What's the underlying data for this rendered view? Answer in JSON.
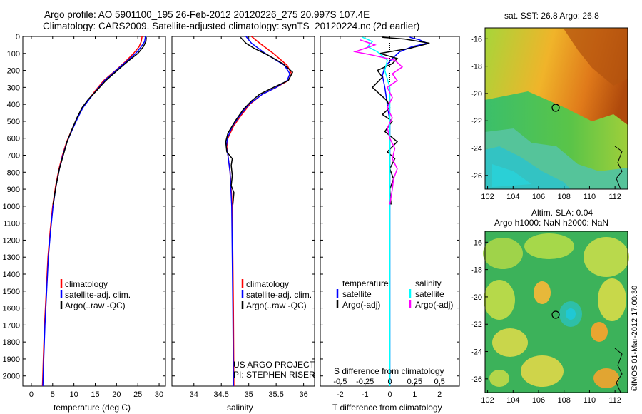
{
  "title": {
    "line1": "Argo profile: AO 5901100_195 26-Feb-2012 20120226_275 20.997S 107.4E",
    "line2": "Climatology: CARS2009. Satellite-adjusted climatology: synTS_20120224.nc (2d earlier)"
  },
  "colors": {
    "climatology": "#ff0000",
    "satellite": "#0000ff",
    "argo": "#000000",
    "argo_adj_salinity": "#ff00ff",
    "satellite_salinity": "#00ffff"
  },
  "depth_ticks": [
    0,
    100,
    200,
    300,
    400,
    500,
    600,
    700,
    800,
    900,
    1000,
    1100,
    1200,
    1300,
    1400,
    1500,
    1600,
    1700,
    1800,
    1900,
    2000
  ],
  "chart_data": [
    {
      "type": "line",
      "id": "temperature",
      "xlabel": "temperature (deg C)",
      "ylabel": "",
      "xlim": [
        -2,
        31.5
      ],
      "ylim": [
        2060,
        0
      ],
      "xticks": [
        0,
        5,
        10,
        15,
        20,
        25,
        30
      ],
      "legend": [
        "climatology",
        "satellite-adj. clim.",
        "Argo(..raw -QC)"
      ],
      "series": [
        {
          "name": "climatology",
          "color": "#ff0000",
          "points": [
            [
              26.0,
              0
            ],
            [
              25.8,
              30
            ],
            [
              25.3,
              60
            ],
            [
              24.0,
              100
            ],
            [
              22.0,
              150
            ],
            [
              19.8,
              200
            ],
            [
              17.0,
              260
            ],
            [
              15.0,
              320
            ],
            [
              13.5,
              370
            ],
            [
              12.0,
              420
            ],
            [
              10.8,
              480
            ],
            [
              9.5,
              550
            ],
            [
              8.3,
              620
            ],
            [
              7.3,
              700
            ],
            [
              6.5,
              780
            ],
            [
              5.7,
              880
            ],
            [
              5.0,
              1000
            ],
            [
              4.4,
              1150
            ],
            [
              3.9,
              1300
            ],
            [
              3.5,
              1500
            ],
            [
              3.1,
              1700
            ],
            [
              2.8,
              1900
            ],
            [
              2.6,
              2060
            ]
          ]
        },
        {
          "name": "satellite-adj. clim.",
          "color": "#0000ff",
          "points": [
            [
              26.8,
              0
            ],
            [
              26.6,
              30
            ],
            [
              25.8,
              60
            ],
            [
              24.5,
              100
            ],
            [
              22.2,
              150
            ],
            [
              19.9,
              200
            ],
            [
              17.2,
              260
            ],
            [
              15.2,
              320
            ],
            [
              13.6,
              370
            ],
            [
              12.1,
              420
            ],
            [
              10.9,
              480
            ],
            [
              9.6,
              550
            ],
            [
              8.4,
              620
            ],
            [
              7.4,
              700
            ],
            [
              6.6,
              780
            ],
            [
              5.8,
              880
            ],
            [
              5.1,
              1000
            ],
            [
              4.5,
              1150
            ],
            [
              4.0,
              1300
            ],
            [
              3.6,
              1500
            ],
            [
              3.2,
              1700
            ],
            [
              2.9,
              1900
            ],
            [
              2.7,
              2060
            ]
          ]
        },
        {
          "name": "Argo(..raw -QC)",
          "color": "#000000",
          "points": [
            [
              27.0,
              5
            ],
            [
              26.9,
              30
            ],
            [
              26.3,
              60
            ],
            [
              25.0,
              100
            ],
            [
              22.5,
              150
            ],
            [
              20.2,
              200
            ],
            [
              17.5,
              260
            ],
            [
              15.3,
              320
            ],
            [
              13.4,
              370
            ],
            [
              11.9,
              420
            ],
            [
              10.7,
              480
            ],
            [
              9.5,
              550
            ],
            [
              8.4,
              620
            ],
            [
              7.5,
              700
            ],
            [
              6.6,
              780
            ],
            [
              5.8,
              880
            ],
            [
              5.1,
              990
            ]
          ]
        }
      ]
    },
    {
      "type": "line",
      "id": "salinity",
      "xlabel": "salinity",
      "ylabel": "",
      "xlim": [
        33.6,
        36.2
      ],
      "ylim": [
        2060,
        0
      ],
      "xticks": [
        34,
        34.5,
        35,
        35.5,
        36
      ],
      "legend": [
        "climatology",
        "satellite-adj. clim.",
        "Argo(..raw -QC)"
      ],
      "annotation": [
        "US ARGO PROJECT",
        "PI: STEPHEN RISER"
      ],
      "series": [
        {
          "name": "climatology",
          "color": "#ff0000",
          "points": [
            [
              35.05,
              0
            ],
            [
              35.2,
              40
            ],
            [
              35.45,
              100
            ],
            [
              35.7,
              170
            ],
            [
              35.78,
              220
            ],
            [
              35.72,
              260
            ],
            [
              35.5,
              300
            ],
            [
              35.25,
              340
            ],
            [
              35.02,
              400
            ],
            [
              34.85,
              470
            ],
            [
              34.72,
              530
            ],
            [
              34.62,
              600
            ],
            [
              34.6,
              650
            ],
            [
              34.62,
              700
            ],
            [
              34.66,
              800
            ],
            [
              34.7,
              1000
            ],
            [
              34.71,
              1300
            ],
            [
              34.72,
              1600
            ],
            [
              34.73,
              2060
            ]
          ]
        },
        {
          "name": "satellite-adj. clim.",
          "color": "#0000ff",
          "points": [
            [
              34.95,
              0
            ],
            [
              35.05,
              40
            ],
            [
              35.3,
              100
            ],
            [
              35.65,
              170
            ],
            [
              35.75,
              220
            ],
            [
              35.7,
              260
            ],
            [
              35.5,
              300
            ],
            [
              35.25,
              340
            ],
            [
              35.0,
              400
            ],
            [
              34.83,
              470
            ],
            [
              34.7,
              530
            ],
            [
              34.61,
              600
            ],
            [
              34.59,
              650
            ],
            [
              34.62,
              700
            ],
            [
              34.66,
              800
            ],
            [
              34.69,
              1000
            ],
            [
              34.7,
              1300
            ],
            [
              34.71,
              1600
            ],
            [
              34.72,
              2060
            ]
          ]
        },
        {
          "name": "Argo(..raw -QC)",
          "color": "#000000",
          "points": [
            [
              34.85,
              5
            ],
            [
              34.95,
              40
            ],
            [
              35.1,
              70
            ],
            [
              35.35,
              110
            ],
            [
              35.62,
              160
            ],
            [
              35.8,
              210
            ],
            [
              35.72,
              260
            ],
            [
              35.45,
              300
            ],
            [
              35.2,
              340
            ],
            [
              35.05,
              380
            ],
            [
              34.9,
              430
            ],
            [
              34.75,
              500
            ],
            [
              34.62,
              570
            ],
            [
              34.58,
              620
            ],
            [
              34.6,
              680
            ],
            [
              34.7,
              720
            ],
            [
              34.68,
              760
            ],
            [
              34.7,
              820
            ],
            [
              34.68,
              880
            ],
            [
              34.73,
              920
            ],
            [
              34.71,
              990
            ]
          ]
        }
      ]
    },
    {
      "type": "line",
      "id": "difference",
      "xlabel": "T difference from climatology",
      "xlabel2": "S difference from climatology",
      "xlim": [
        -2.8,
        2.8
      ],
      "ylim": [
        2060,
        0
      ],
      "xticks_T": [
        -2,
        -1,
        0,
        1,
        2
      ],
      "xticks_S": [
        "-0.5",
        "-0.25",
        "0",
        "0.25",
        "0.5"
      ],
      "xticks_S_pos": [
        -2,
        -1,
        0,
        1,
        2
      ],
      "legend_header": [
        "temperature",
        "salinity"
      ],
      "legend": [
        "satellite",
        "Argo(-adj)",
        "satellite",
        "Argo(-adj)"
      ],
      "series": [
        {
          "name": "T satellite",
          "color": "#0000ff",
          "points": [
            [
              0.8,
              5
            ],
            [
              1.2,
              20
            ],
            [
              1.5,
              40
            ],
            [
              0.9,
              60
            ],
            [
              0.4,
              90
            ],
            [
              0.1,
              130
            ],
            [
              -0.2,
              180
            ],
            [
              -0.3,
              230
            ],
            [
              -0.2,
              300
            ],
            [
              -0.1,
              400
            ],
            [
              0.0,
              500
            ],
            [
              0.0,
              700
            ],
            [
              0.0,
              900
            ],
            [
              0.0,
              1300
            ],
            [
              0.0,
              1700
            ],
            [
              0.0,
              2060
            ]
          ]
        },
        {
          "name": "T Argo(-adj)",
          "color": "#000000",
          "points": [
            [
              -0.3,
              5
            ],
            [
              0.6,
              15
            ],
            [
              1.6,
              40
            ],
            [
              0.8,
              70
            ],
            [
              -0.4,
              100
            ],
            [
              0.3,
              130
            ],
            [
              0.1,
              160
            ],
            [
              -0.5,
              200
            ],
            [
              -0.3,
              240
            ],
            [
              -0.7,
              300
            ],
            [
              -0.4,
              340
            ],
            [
              -0.1,
              380
            ],
            [
              0.0,
              420
            ],
            [
              -0.3,
              460
            ],
            [
              0.1,
              500
            ],
            [
              -0.2,
              560
            ],
            [
              0.3,
              620
            ],
            [
              -0.1,
              680
            ],
            [
              0.2,
              720
            ],
            [
              0.0,
              780
            ],
            [
              0.15,
              840
            ],
            [
              0.0,
              900
            ],
            [
              0.05,
              990
            ]
          ]
        },
        {
          "name": "S satellite",
          "color": "#00ffff",
          "points": [
            [
              -1.1,
              5
            ],
            [
              -0.7,
              30
            ],
            [
              -0.9,
              60
            ],
            [
              -0.5,
              90
            ],
            [
              -0.1,
              140
            ],
            [
              -0.2,
              200
            ],
            [
              0.0,
              300
            ],
            [
              0.0,
              500
            ],
            [
              0.0,
              800
            ],
            [
              0.0,
              1200
            ],
            [
              0.0,
              2060
            ]
          ]
        },
        {
          "name": "S Argo(-adj)",
          "color": "#ff00ff",
          "points": [
            [
              -1.2,
              20
            ],
            [
              -0.6,
              50
            ],
            [
              -1.4,
              90
            ],
            [
              -0.7,
              110
            ],
            [
              0.2,
              140
            ],
            [
              0.5,
              180
            ],
            [
              0.1,
              220
            ],
            [
              0.3,
              260
            ],
            [
              -0.1,
              300
            ],
            [
              0.1,
              360
            ],
            [
              -0.1,
              420
            ],
            [
              0.1,
              480
            ],
            [
              -0.1,
              540
            ],
            [
              0.0,
              600
            ],
            [
              0.2,
              660
            ],
            [
              0.1,
              720
            ],
            [
              0.3,
              780
            ],
            [
              0.15,
              840
            ],
            [
              0.1,
              900
            ],
            [
              0.0,
              990
            ]
          ]
        }
      ]
    },
    {
      "type": "heatmap",
      "id": "sst_map",
      "title": "sat. SST: 26.8 Argo: 26.8",
      "xlim": [
        101.8,
        113.0
      ],
      "ylim": [
        -27.0,
        -15.2
      ],
      "xticks": [
        102,
        104,
        106,
        108,
        110,
        112
      ],
      "yticks": [
        -16,
        -18,
        -20,
        -22,
        -24,
        -26
      ],
      "marker": [
        107.4,
        -21.0
      ]
    },
    {
      "type": "heatmap",
      "id": "sla_map",
      "title": "Altim. SLA: 0.04",
      "subtitle": "Argo h1000: NaN h2000: NaN",
      "xlim": [
        101.8,
        113.0
      ],
      "ylim": [
        -27.0,
        -15.2
      ],
      "xticks": [
        102,
        104,
        106,
        108,
        110,
        112
      ],
      "yticks": [
        -16,
        -18,
        -20,
        -22,
        -24,
        -26
      ],
      "marker": [
        107.4,
        -21.0
      ]
    }
  ],
  "panel_text": {
    "legend_climatology": "climatology",
    "legend_satellite": "satellite-adj. clim.",
    "legend_argo": "Argo(..raw -QC)",
    "legend_temperature": "temperature",
    "legend_salinity": "salinity",
    "legend_sat": "satellite",
    "legend_argo_adj": "Argo(-adj)",
    "project_1": "US ARGO PROJECT",
    "project_2": "PI: STEPHEN RISER",
    "credit": "©IMOS 01-Mar-2012 17:00:30"
  }
}
